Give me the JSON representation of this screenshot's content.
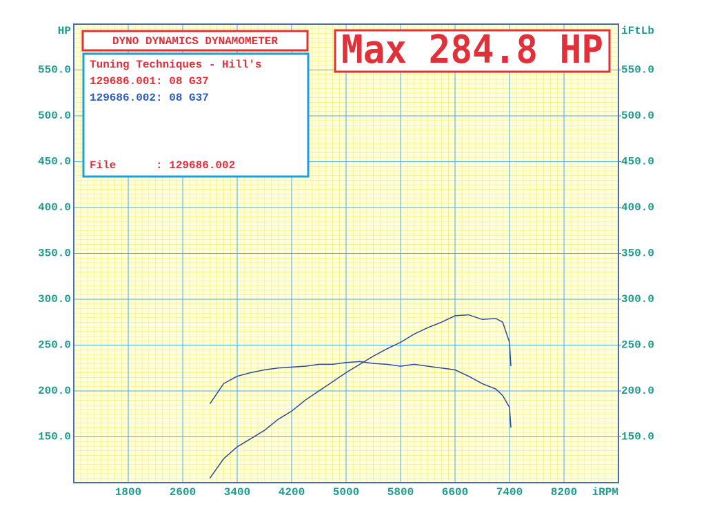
{
  "chart_data": {
    "type": "line",
    "title": "DYNO DYNAMICS DYNAMOMETER",
    "annotations": {
      "max": "Max 284.8 HP",
      "shop": "Tuning Techniques - Hill's",
      "file": "File      : 129686.002"
    },
    "runs": [
      {
        "label": "129686.001: 08 G37",
        "color": "#e0303a"
      },
      {
        "label": "129686.002: 08 G37",
        "color": "#2e5cb8"
      }
    ],
    "y_label": "HP",
    "y2_label": "iFtLb",
    "x_label": "iRPM",
    "x": [
      3000,
      3200,
      3400,
      3600,
      3800,
      4000,
      4200,
      4400,
      4600,
      4800,
      5000,
      5200,
      5400,
      5600,
      5800,
      6000,
      6200,
      6400,
      6600,
      6800,
      7000,
      7200,
      7300,
      7400,
      7420
    ],
    "series": [
      {
        "color": "#2a4a9a",
        "values": [
          105,
          126,
          139,
          148,
          157,
          169,
          178,
          190,
          200,
          210,
          220,
          229,
          238,
          246,
          253,
          262,
          269,
          275,
          282,
          283,
          278,
          279,
          275,
          253,
          227
        ]
      },
      {
        "color": "#2a4a9a",
        "axis": "y2",
        "values": [
          186,
          208,
          216,
          220,
          223,
          225,
          226,
          227,
          229,
          229,
          231,
          232,
          230,
          229,
          227,
          229,
          227,
          225,
          223,
          216,
          208,
          202,
          195,
          182,
          160
        ]
      }
    ],
    "xlim": [
      1000,
      9000
    ],
    "xticks": [
      1800,
      2600,
      3400,
      4200,
      5000,
      5800,
      6600,
      7400,
      8200
    ],
    "ylim": [
      100,
      600
    ],
    "yticks": [
      {
        "value": 150,
        "label": "150.0"
      },
      {
        "value": 200,
        "label": "200.0"
      },
      {
        "value": 250,
        "label": "250.0"
      },
      {
        "value": 300,
        "label": "300.0"
      },
      {
        "value": 350,
        "label": "350.0"
      },
      {
        "value": 400,
        "label": "400.0"
      },
      {
        "value": 450,
        "label": "450.0"
      },
      {
        "value": 500,
        "label": "500.0"
      },
      {
        "value": 550,
        "label": "550.0"
      }
    ],
    "y2lim": [
      100,
      600
    ],
    "y2ticks": [
      {
        "value": 150,
        "label": "150.0"
      },
      {
        "value": 200,
        "label": "200.0"
      },
      {
        "value": 250,
        "label": "250.0"
      },
      {
        "value": 300,
        "label": "300.0"
      },
      {
        "value": 350,
        "label": "350.0"
      },
      {
        "value": 400,
        "label": "400.0"
      },
      {
        "value": 450,
        "label": "450.0"
      },
      {
        "value": 500,
        "label": "500.0"
      },
      {
        "value": 550,
        "label": "550.0"
      }
    ],
    "grid": true
  }
}
